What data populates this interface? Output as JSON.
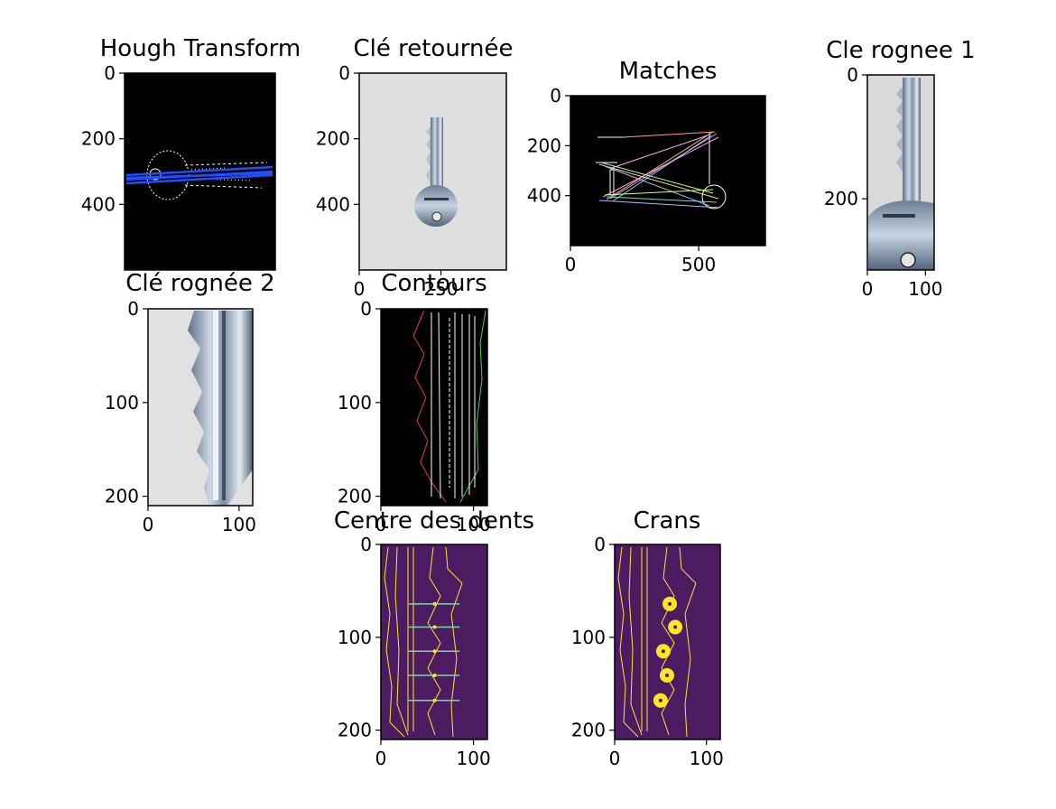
{
  "figure": {
    "colors": {
      "background": "#ffffff",
      "black": "#000000",
      "viridis_dark": "#440154",
      "viridis_yellow": "#fde725",
      "hough_line": "#1f4fff",
      "photo_gray": "#dcdcdc",
      "steel": "#8ea4b8"
    }
  },
  "chart_data": [
    {
      "id": "hough",
      "type": "image",
      "title": "Hough Transform",
      "yticks": [
        "0",
        "200",
        "400"
      ],
      "xticks": [],
      "extent": {
        "w": 450,
        "h": 600
      }
    },
    {
      "id": "retournee",
      "type": "image",
      "title": "Clé retournée",
      "yticks": [
        "0",
        "200",
        "400"
      ],
      "xticks": [
        "0",
        "250"
      ],
      "extent": {
        "w": 450,
        "h": 600
      }
    },
    {
      "id": "matches",
      "type": "image",
      "title": "Matches",
      "yticks": [
        "0",
        "200",
        "400"
      ],
      "xticks": [
        "0",
        "500"
      ],
      "extent": {
        "w": 760,
        "h": 600
      }
    },
    {
      "id": "rognee1",
      "type": "image",
      "title": "Cle rognee 1",
      "yticks": [
        "0",
        "200"
      ],
      "xticks": [
        "0",
        "100"
      ],
      "extent": {
        "w": 115,
        "h": 315
      }
    },
    {
      "id": "rognee2",
      "type": "image",
      "title": "Clé rognée 2",
      "yticks": [
        "0",
        "100",
        "200"
      ],
      "xticks": [
        "0",
        "100"
      ],
      "extent": {
        "w": 115,
        "h": 210
      }
    },
    {
      "id": "contours",
      "type": "image",
      "title": "Contours",
      "yticks": [
        "0",
        "100",
        "200"
      ],
      "xticks": [
        "0",
        "100"
      ],
      "extent": {
        "w": 115,
        "h": 210
      }
    },
    {
      "id": "centre",
      "type": "image",
      "title": "Centre des dents",
      "yticks": [
        "0",
        "100",
        "200"
      ],
      "xticks": [
        "0",
        "100"
      ],
      "extent": {
        "w": 115,
        "h": 210
      },
      "teeth_y": [
        64,
        89,
        115,
        141,
        168
      ]
    },
    {
      "id": "crans",
      "type": "image",
      "title": "Crans",
      "yticks": [
        "0",
        "100",
        "200"
      ],
      "xticks": [
        "0",
        "100"
      ],
      "extent": {
        "w": 115,
        "h": 210
      },
      "notches": [
        {
          "x": 60,
          "y": 64
        },
        {
          "x": 66,
          "y": 89
        },
        {
          "x": 53,
          "y": 115
        },
        {
          "x": 57,
          "y": 141
        },
        {
          "x": 50,
          "y": 168
        }
      ]
    }
  ]
}
